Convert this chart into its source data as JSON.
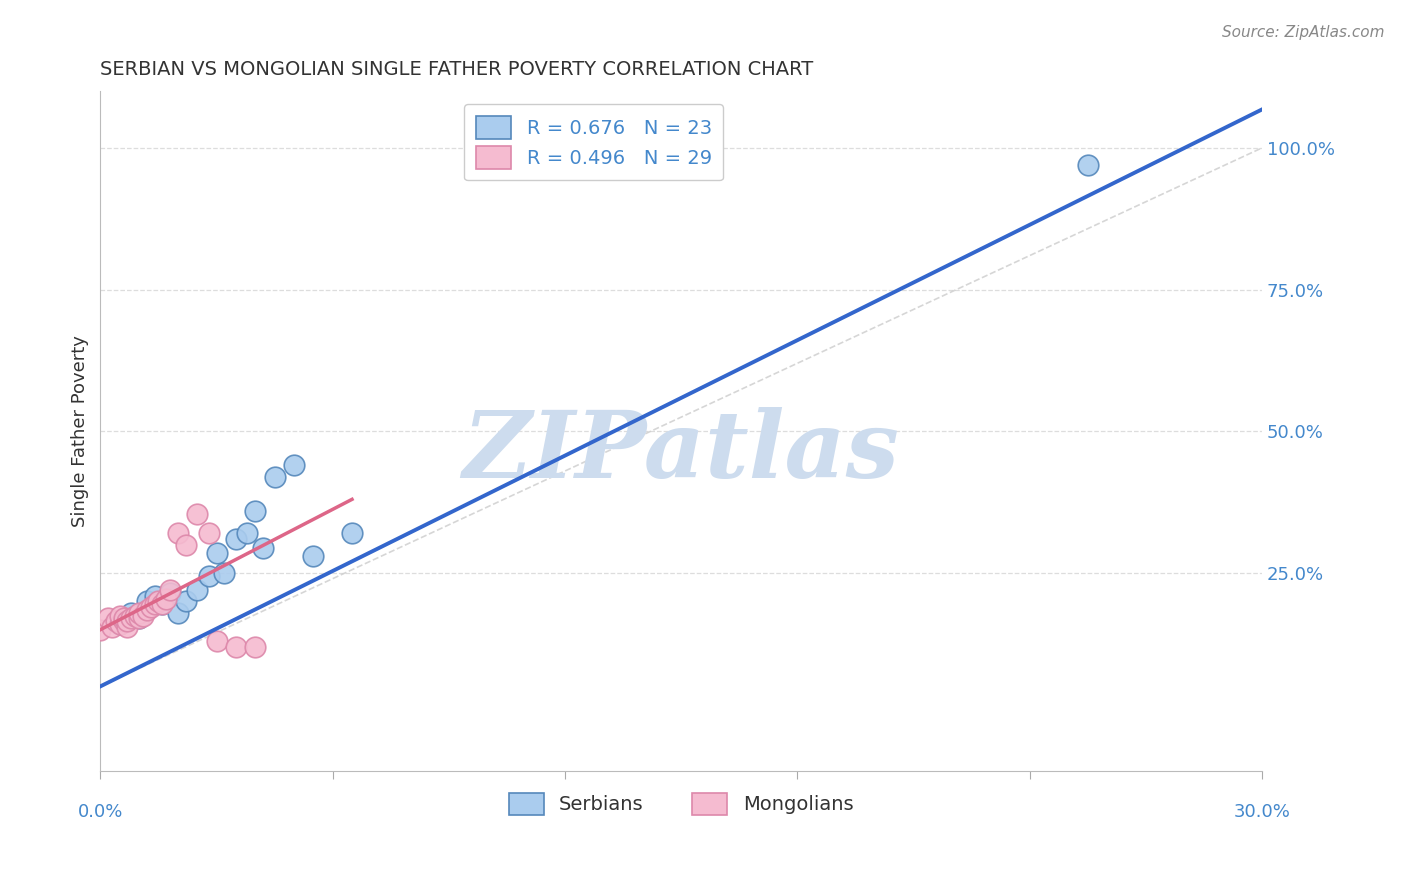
{
  "title": "SERBIAN VS MONGOLIAN SINGLE FATHER POVERTY CORRELATION CHART",
  "source": "Source: ZipAtlas.com",
  "ylabel": "Single Father Poverty",
  "xmin": 0.0,
  "xmax": 0.3,
  "ymin": -0.1,
  "ymax": 1.1,
  "serbian_color": "#aaccee",
  "serbian_edge": "#5588bb",
  "mongolian_color": "#f5bbd0",
  "mongolian_edge": "#dd88aa",
  "serbian_line_color": "#3366cc",
  "mongolian_line_color": "#dd6688",
  "diagonal_color": "#cccccc",
  "r_serbian": 0.676,
  "n_serbian": 23,
  "r_mongolian": 0.496,
  "n_mongolian": 29,
  "serbian_points_x": [
    0.005,
    0.008,
    0.01,
    0.01,
    0.012,
    0.014,
    0.016,
    0.018,
    0.02,
    0.022,
    0.025,
    0.028,
    0.03,
    0.032,
    0.035,
    0.038,
    0.04,
    0.042,
    0.045,
    0.05,
    0.055,
    0.065,
    0.255
  ],
  "serbian_points_y": [
    0.16,
    0.18,
    0.17,
    0.175,
    0.2,
    0.21,
    0.195,
    0.215,
    0.18,
    0.2,
    0.22,
    0.245,
    0.285,
    0.25,
    0.31,
    0.32,
    0.36,
    0.295,
    0.42,
    0.44,
    0.28,
    0.32,
    0.97
  ],
  "mongolian_points_x": [
    0.0,
    0.002,
    0.003,
    0.004,
    0.005,
    0.005,
    0.006,
    0.006,
    0.007,
    0.007,
    0.008,
    0.009,
    0.01,
    0.01,
    0.011,
    0.012,
    0.013,
    0.014,
    0.015,
    0.016,
    0.017,
    0.018,
    0.02,
    0.022,
    0.025,
    0.028,
    0.03,
    0.035,
    0.04
  ],
  "mongolian_points_y": [
    0.15,
    0.17,
    0.155,
    0.165,
    0.16,
    0.175,
    0.165,
    0.17,
    0.155,
    0.165,
    0.17,
    0.175,
    0.17,
    0.18,
    0.175,
    0.185,
    0.19,
    0.195,
    0.2,
    0.195,
    0.205,
    0.22,
    0.32,
    0.3,
    0.355,
    0.32,
    0.13,
    0.12,
    0.12
  ],
  "grid_yticks": [
    0.25,
    0.5,
    0.75,
    1.0
  ],
  "grid_color": "#dddddd",
  "watermark": "ZIPatlas",
  "watermark_color": "#cddcee",
  "legend_text_serbian": "R = 0.676   N = 23",
  "legend_text_mongolian": "R = 0.496   N = 29"
}
